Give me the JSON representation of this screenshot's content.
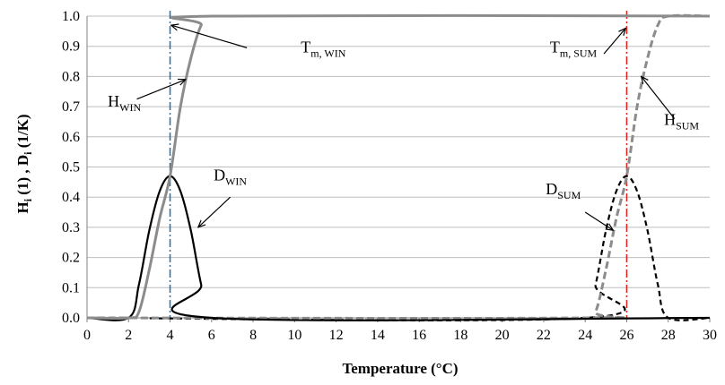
{
  "chart_data": {
    "type": "line",
    "xlabel": "Temperature (°C)",
    "ylabel": {
      "main1": "H",
      "sub1": "i",
      "mid": " (1) , D",
      "sub2": "i",
      "tail": " (1/K)"
    },
    "xlim": [
      0,
      30
    ],
    "ylim": [
      0,
      1.0
    ],
    "x_ticks": [
      0,
      2,
      4,
      6,
      8,
      10,
      12,
      14,
      16,
      18,
      20,
      22,
      24,
      26,
      28,
      30
    ],
    "y_ticks": [
      "0.0",
      "0.1",
      "0.2",
      "0.3",
      "0.4",
      "0.5",
      "0.6",
      "0.7",
      "0.8",
      "0.9",
      "1.0"
    ],
    "grid": "horizontal",
    "series": [
      {
        "key": "H_WIN",
        "style": "solid-gray",
        "x": [
          0,
          2,
          2.5,
          3,
          3.5,
          4,
          4.5,
          5,
          5.5,
          6,
          30
        ],
        "y": [
          0,
          0,
          0.02,
          0.16,
          0.33,
          0.47,
          0.7,
          0.86,
          0.97,
          1.0,
          1.0
        ]
      },
      {
        "key": "D_WIN",
        "style": "solid-black",
        "x": [
          0,
          2,
          2.5,
          3,
          3.5,
          4,
          4.5,
          5,
          5.5,
          6,
          30
        ],
        "y": [
          0,
          0,
          0.11,
          0.29,
          0.42,
          0.47,
          0.42,
          0.29,
          0.11,
          0,
          0
        ]
      },
      {
        "key": "H_SUM",
        "style": "dashed-gray",
        "x": [
          0,
          24,
          24.5,
          25,
          25.5,
          26,
          26.5,
          27,
          27.5,
          28,
          30
        ],
        "y": [
          0,
          0,
          0.02,
          0.16,
          0.33,
          0.47,
          0.7,
          0.86,
          0.97,
          1.0,
          1.0
        ]
      },
      {
        "key": "D_SUM",
        "style": "dashed-black",
        "x": [
          0,
          24,
          24.5,
          25,
          25.5,
          26,
          26.5,
          27,
          27.5,
          28,
          30
        ],
        "y": [
          0,
          0,
          0.11,
          0.29,
          0.42,
          0.47,
          0.42,
          0.29,
          0.11,
          0,
          0
        ]
      }
    ],
    "vlines": [
      {
        "key": "Tm_WIN",
        "x": 4,
        "color": "#1f6fb0",
        "style": "dash-dot"
      },
      {
        "key": "Tm_SUM",
        "x": 26,
        "color": "#e0201b",
        "style": "dash-dot"
      }
    ],
    "annotations": [
      {
        "key": "Tm_WIN",
        "main": "T",
        "sub": "m, WIN",
        "text_at": [
          10.3,
          0.88
        ],
        "arrow_from": [
          7.7,
          0.895
        ],
        "arrow_to": [
          4.05,
          0.97
        ]
      },
      {
        "key": "H_WIN",
        "main": "H",
        "sub": "WIN",
        "text_at": [
          1.0,
          0.7
        ],
        "arrow_from": [
          2.4,
          0.725
        ],
        "arrow_to": [
          4.75,
          0.79
        ]
      },
      {
        "key": "D_WIN",
        "main": "D",
        "sub": "WIN",
        "text_at": [
          6.1,
          0.455
        ],
        "arrow_from": [
          6.9,
          0.4
        ],
        "arrow_to": [
          5.35,
          0.3
        ]
      },
      {
        "key": "Tm_SUM",
        "main": "T",
        "sub": "m, SUM",
        "text_at": [
          22.3,
          0.88
        ],
        "arrow_from": [
          24.9,
          0.875
        ],
        "arrow_to": [
          25.95,
          0.96
        ]
      },
      {
        "key": "H_SUM",
        "main": "H",
        "sub": "SUM",
        "text_at": [
          27.8,
          0.64
        ],
        "arrow_from": [
          28.3,
          0.66
        ],
        "arrow_to": [
          26.7,
          0.8
        ]
      },
      {
        "key": "D_SUM",
        "main": "D",
        "sub": "SUM",
        "text_at": [
          22.1,
          0.41
        ],
        "arrow_from": [
          24.0,
          0.35
        ],
        "arrow_to": [
          25.35,
          0.29
        ]
      }
    ]
  }
}
